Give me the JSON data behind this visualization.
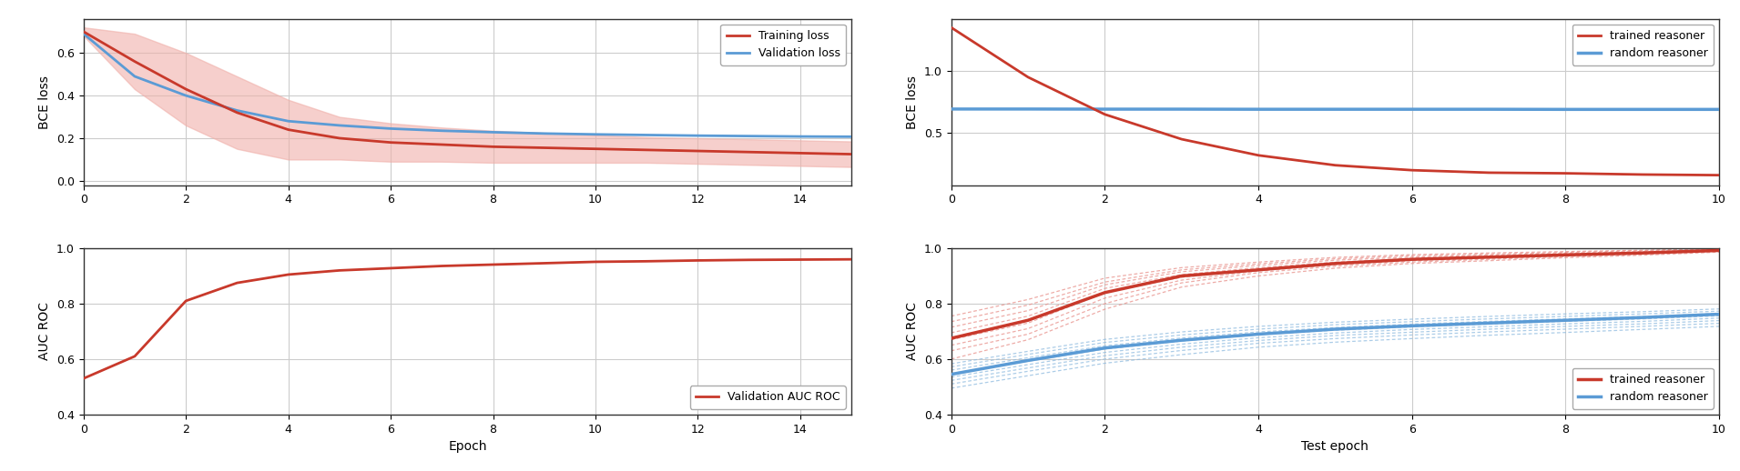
{
  "train_epochs": [
    0,
    1,
    2,
    3,
    4,
    5,
    6,
    7,
    8,
    9,
    10,
    11,
    12,
    13,
    14,
    15
  ],
  "train_loss_mean": [
    0.7,
    0.56,
    0.43,
    0.32,
    0.24,
    0.2,
    0.18,
    0.17,
    0.16,
    0.155,
    0.15,
    0.145,
    0.14,
    0.135,
    0.13,
    0.125
  ],
  "train_loss_std": [
    0.02,
    0.13,
    0.17,
    0.17,
    0.14,
    0.1,
    0.09,
    0.08,
    0.075,
    0.07,
    0.065,
    0.06,
    0.06,
    0.06,
    0.06,
    0.06
  ],
  "val_loss": [
    0.69,
    0.49,
    0.4,
    0.33,
    0.28,
    0.26,
    0.245,
    0.235,
    0.228,
    0.222,
    0.218,
    0.215,
    0.212,
    0.21,
    0.208,
    0.207
  ],
  "val_auc": [
    0.53,
    0.61,
    0.81,
    0.875,
    0.905,
    0.92,
    0.928,
    0.936,
    0.941,
    0.946,
    0.951,
    0.953,
    0.956,
    0.958,
    0.959,
    0.96
  ],
  "test_epochs": [
    0,
    1,
    2,
    3,
    4,
    5,
    6,
    7,
    8,
    9,
    10
  ],
  "test_loss_trained": [
    1.35,
    0.95,
    0.65,
    0.45,
    0.32,
    0.24,
    0.2,
    0.18,
    0.175,
    0.165,
    0.16
  ],
  "test_loss_random": [
    0.693,
    0.693,
    0.692,
    0.692,
    0.691,
    0.691,
    0.691,
    0.691,
    0.69,
    0.69,
    0.69
  ],
  "test_auc_trained_mean": [
    0.675,
    0.74,
    0.84,
    0.9,
    0.922,
    0.945,
    0.96,
    0.968,
    0.976,
    0.983,
    0.992
  ],
  "test_auc_random_mean": [
    0.545,
    0.595,
    0.64,
    0.668,
    0.69,
    0.708,
    0.72,
    0.73,
    0.74,
    0.75,
    0.762
  ],
  "test_auc_trained_dashed": [
    [
      0.6,
      0.67,
      0.78,
      0.86,
      0.9,
      0.928,
      0.945,
      0.955,
      0.966,
      0.975,
      0.986
    ],
    [
      0.63,
      0.69,
      0.8,
      0.875,
      0.912,
      0.935,
      0.95,
      0.96,
      0.97,
      0.978,
      0.989
    ],
    [
      0.65,
      0.71,
      0.82,
      0.885,
      0.918,
      0.94,
      0.955,
      0.964,
      0.973,
      0.981,
      0.991
    ],
    [
      0.67,
      0.73,
      0.84,
      0.895,
      0.923,
      0.945,
      0.959,
      0.967,
      0.975,
      0.982,
      0.992
    ],
    [
      0.695,
      0.755,
      0.855,
      0.905,
      0.93,
      0.95,
      0.963,
      0.971,
      0.979,
      0.986,
      0.994
    ],
    [
      0.715,
      0.775,
      0.868,
      0.915,
      0.938,
      0.957,
      0.968,
      0.975,
      0.982,
      0.988,
      0.996
    ],
    [
      0.735,
      0.795,
      0.878,
      0.922,
      0.944,
      0.962,
      0.973,
      0.979,
      0.985,
      0.991,
      0.997
    ],
    [
      0.755,
      0.815,
      0.892,
      0.93,
      0.95,
      0.967,
      0.977,
      0.983,
      0.988,
      0.993,
      0.998
    ]
  ],
  "test_auc_random_dashed": [
    [
      0.495,
      0.54,
      0.585,
      0.616,
      0.643,
      0.661,
      0.674,
      0.686,
      0.696,
      0.707,
      0.718
    ],
    [
      0.51,
      0.556,
      0.6,
      0.631,
      0.657,
      0.674,
      0.687,
      0.698,
      0.708,
      0.718,
      0.729
    ],
    [
      0.523,
      0.568,
      0.612,
      0.643,
      0.667,
      0.685,
      0.697,
      0.708,
      0.718,
      0.727,
      0.739
    ],
    [
      0.535,
      0.58,
      0.624,
      0.654,
      0.677,
      0.694,
      0.707,
      0.717,
      0.727,
      0.736,
      0.748
    ],
    [
      0.548,
      0.592,
      0.636,
      0.665,
      0.688,
      0.704,
      0.716,
      0.726,
      0.736,
      0.745,
      0.756
    ],
    [
      0.56,
      0.605,
      0.648,
      0.676,
      0.698,
      0.714,
      0.726,
      0.736,
      0.745,
      0.754,
      0.765
    ],
    [
      0.572,
      0.617,
      0.66,
      0.687,
      0.708,
      0.724,
      0.735,
      0.745,
      0.754,
      0.763,
      0.773
    ],
    [
      0.583,
      0.628,
      0.671,
      0.698,
      0.718,
      0.733,
      0.744,
      0.754,
      0.763,
      0.771,
      0.781
    ]
  ],
  "color_red": "#c8392b",
  "color_blue": "#5b9bd5",
  "color_red_fill": "#f0b0aa",
  "color_red_dashed": "#e8908a",
  "color_blue_dashed": "#90bce0",
  "bg_color": "#ffffff",
  "label_fontsize": 10,
  "tick_fontsize": 9,
  "legend_fontsize": 9,
  "grid_color": "#cccccc",
  "ax_bg": "#ffffff"
}
